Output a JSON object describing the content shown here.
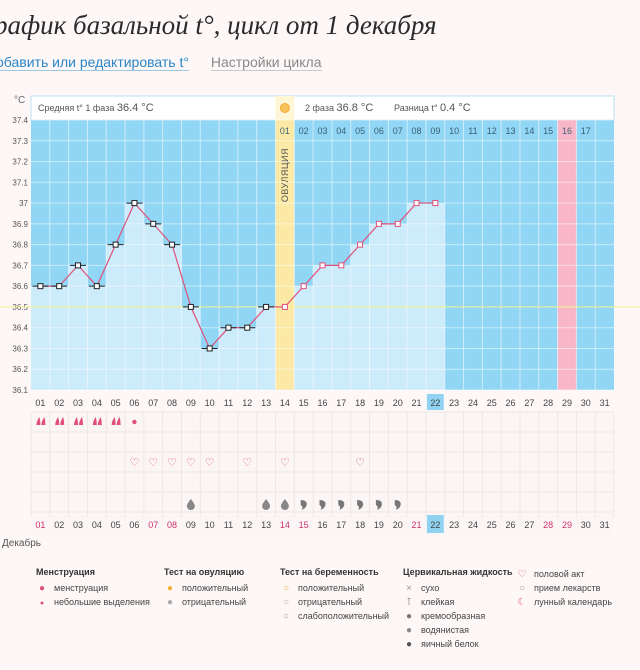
{
  "header": {
    "title": "рафик базальной t°, цикл от 1 декабря",
    "add_link": "обавить или редактировать t°",
    "settings_link": "Настройки цикла"
  },
  "stats": {
    "unit": "°C",
    "phase1_label": "Средняя t° 1 фаза",
    "phase1_value": "36.4 °C",
    "phase2_label": "2 фаза",
    "phase2_value": "36.8 °C",
    "diff_label": "Разница t°",
    "diff_value": "0.4 °C"
  },
  "ovulation_label": "ОВУЛЯЦИЯ",
  "month_label": "Декабрь",
  "chart_data": {
    "type": "line",
    "xlabel": "",
    "ylabel": "°C",
    "ylim": [
      36.1,
      37.4
    ],
    "yticks": [
      "37.4",
      "37.3",
      "37.2",
      "37.1",
      "37",
      "36.9",
      "36.8",
      "36.7",
      "36.6",
      "36.5",
      "36.4",
      "36.3",
      "36.2",
      "36.1"
    ],
    "days": [
      "01",
      "02",
      "03",
      "04",
      "05",
      "06",
      "07",
      "08",
      "09",
      "10",
      "11",
      "12",
      "13",
      "14",
      "15",
      "16",
      "17",
      "18",
      "19",
      "20",
      "21",
      "22",
      "23",
      "24",
      "25",
      "26",
      "27",
      "28",
      "29",
      "30",
      "31"
    ],
    "temperatures": [
      36.6,
      36.6,
      36.7,
      36.6,
      36.8,
      37.0,
      36.9,
      36.8,
      36.5,
      36.3,
      36.4,
      36.4,
      36.5,
      36.5,
      36.6,
      36.7,
      36.7,
      36.8,
      36.9,
      36.9,
      37.0,
      37.0,
      null,
      null,
      null,
      null,
      null,
      null,
      null,
      null,
      null
    ],
    "coverline": 36.5,
    "ovulation_day": 14,
    "today": 22,
    "period_end_day": 29,
    "cycle_day_labels": [
      "01",
      "02",
      "03",
      "04",
      "05",
      "06",
      "07",
      "08",
      "09",
      "10",
      "11",
      "12",
      "13",
      "14",
      "15",
      "16",
      "17"
    ]
  },
  "rows": {
    "menstruation": [
      "heavy",
      "heavy",
      "heavy",
      "heavy",
      "heavy",
      "light",
      "",
      "",
      "",
      "",
      "",
      "",
      "",
      "",
      "",
      "",
      "",
      "",
      "",
      "",
      "",
      "",
      "",
      "",
      "",
      "",
      "",
      "",
      "",
      "",
      ""
    ],
    "intercourse": [
      "",
      "",
      "",
      "",
      "",
      "x",
      "x",
      "x",
      "x",
      "x",
      "",
      "x",
      "",
      "x",
      "",
      "",
      "",
      "x",
      "",
      "",
      "",
      "",
      "",
      "",
      "",
      "",
      "",
      "",
      "",
      "",
      ""
    ],
    "cervical": [
      "",
      "",
      "",
      "",
      "",
      "",
      "",
      "",
      "d",
      "",
      "",
      "",
      "d",
      "d",
      "c",
      "c",
      "c",
      "c",
      "c",
      "c",
      "",
      "",
      "",
      "",
      "",
      "",
      "",
      "",
      "",
      "",
      ""
    ]
  },
  "weekend_days": [
    1,
    7,
    8,
    14,
    15,
    21,
    22,
    28,
    29
  ],
  "legend": {
    "menstruation": {
      "title": "Менструация",
      "items": [
        "менструация",
        "небольшие выделения"
      ]
    },
    "ovulation_test": {
      "title": "Тест на овуляцию",
      "items": [
        "положительный",
        "отрицательный"
      ]
    },
    "pregnancy_test": {
      "title": "Тест на беременность",
      "items": [
        "положительный",
        "отрицательный",
        "слабоположительный"
      ]
    },
    "cervical_fluid": {
      "title": "Цервикальная жидкость",
      "items": [
        "сухо",
        "клейкая",
        "кремообразная",
        "водянистая",
        "яичный белок"
      ]
    },
    "other": {
      "items": [
        "половой акт",
        "прием лекарств",
        "лунный календарь"
      ]
    }
  },
  "colors": {
    "sky": "#91d6f4",
    "bar": "#ccebfb",
    "line": "#e0507a",
    "ovulation": "#fbe9a5",
    "period": "#f9b6c8",
    "today": "#8fd2f2",
    "grid": "#c8e4f2"
  }
}
